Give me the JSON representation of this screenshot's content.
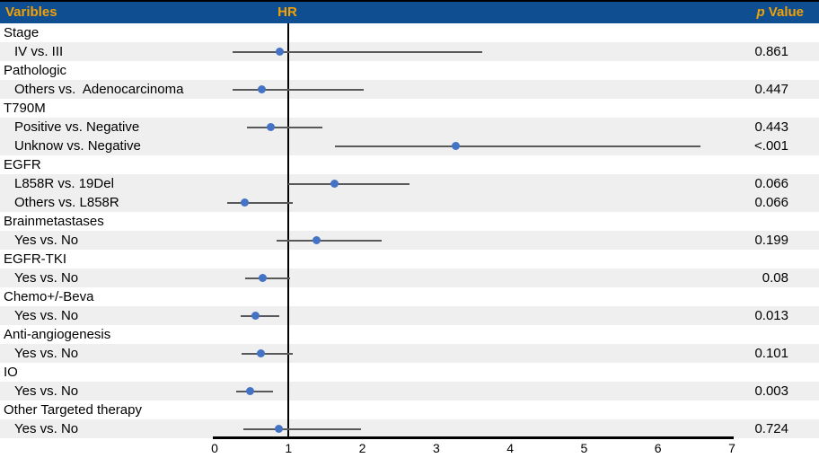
{
  "header": {
    "variables_label": "Varibles",
    "hr_label": "HR",
    "p_label_italic": "p",
    "p_label_rest": " Value"
  },
  "colors": {
    "header_bg": "#0F4E91",
    "header_text": "#F2A104",
    "stripe": "#EFEFEF",
    "dot": "#4472C4",
    "ci_line": "#58595B",
    "ref_line": "#000000"
  },
  "chart_data": {
    "type": "forest",
    "title": "",
    "xlabel": "",
    "xlim": [
      0,
      7
    ],
    "x_ticks": [
      0,
      1,
      2,
      3,
      4,
      5,
      6,
      7
    ],
    "ref_line_x": 1,
    "rows": [
      {
        "kind": "group",
        "label": "Stage"
      },
      {
        "kind": "item",
        "label": "IV vs. III",
        "hr": 0.88,
        "ci_low": 0.24,
        "ci_high": 3.62,
        "p": "0.861"
      },
      {
        "kind": "group",
        "label": "Pathologic"
      },
      {
        "kind": "item",
        "label": "Others vs.  Adenocarcinoma",
        "hr": 0.64,
        "ci_low": 0.24,
        "ci_high": 2.02,
        "p": "0.447"
      },
      {
        "kind": "group",
        "label": "T790M"
      },
      {
        "kind": "item",
        "label": "Positive vs. Negative",
        "hr": 0.76,
        "ci_low": 0.44,
        "ci_high": 1.46,
        "p": "0.443"
      },
      {
        "kind": "item",
        "label": "Unknow vs. Negative",
        "hr": 3.26,
        "ci_low": 1.63,
        "ci_high": 6.58,
        "p": "<.001"
      },
      {
        "kind": "group",
        "label": "EGFR"
      },
      {
        "kind": "item",
        "label": "L858R vs. 19Del",
        "hr": 1.62,
        "ci_low": 1.0,
        "ci_high": 2.64,
        "p": "0.066"
      },
      {
        "kind": "item",
        "label": "Others vs. L858R",
        "hr": 0.41,
        "ci_low": 0.17,
        "ci_high": 1.06,
        "p": "0.066"
      },
      {
        "kind": "group",
        "label": "Brainmetastases"
      },
      {
        "kind": "item",
        "label": "Yes vs. No",
        "hr": 1.38,
        "ci_low": 0.84,
        "ci_high": 2.26,
        "p": "0.199"
      },
      {
        "kind": "group",
        "label": "EGFR-TKI"
      },
      {
        "kind": "item",
        "label": "Yes vs. No",
        "hr": 0.65,
        "ci_low": 0.41,
        "ci_high": 1.02,
        "p": "0.08"
      },
      {
        "kind": "group",
        "label": "Chemo+/-Beva"
      },
      {
        "kind": "item",
        "label": "Yes vs. No",
        "hr": 0.55,
        "ci_low": 0.35,
        "ci_high": 0.87,
        "p": "0.013"
      },
      {
        "kind": "group",
        "label": "Anti-angiogenesis"
      },
      {
        "kind": "item",
        "label": "Yes vs. No",
        "hr": 0.62,
        "ci_low": 0.36,
        "ci_high": 1.06,
        "p": "0.101"
      },
      {
        "kind": "group",
        "label": "IO"
      },
      {
        "kind": "item",
        "label": "Yes vs. No",
        "hr": 0.48,
        "ci_low": 0.29,
        "ci_high": 0.79,
        "p": "0.003"
      },
      {
        "kind": "group",
        "label": "Other Targeted therapy"
      },
      {
        "kind": "item",
        "label": "Yes vs. No",
        "hr": 0.87,
        "ci_low": 0.39,
        "ci_high": 1.98,
        "p": "0.724"
      }
    ]
  }
}
